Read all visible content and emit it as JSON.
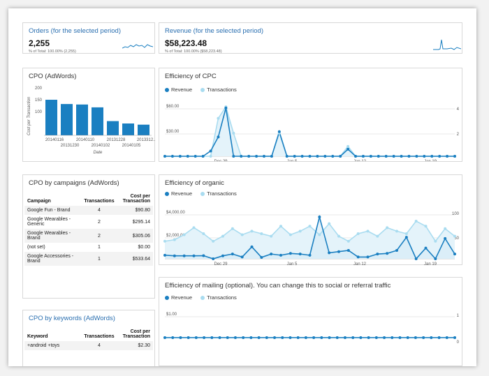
{
  "orders": {
    "title": "Orders (for the selected period)",
    "value": "2,255",
    "sub": "% of Total: 100.00% (2,255)"
  },
  "revenue": {
    "title": "Revenue (for the selected period)",
    "value": "$58,223.48",
    "sub": "% of Total: 100.00% ($58,223.48)"
  },
  "cpo": {
    "title": "CPO (AdWords)"
  },
  "cpc": {
    "title": "Efficiency of CPC",
    "legend": [
      "Revenue",
      "Transactions"
    ]
  },
  "organic": {
    "title": "Efficiency of organic",
    "legend": [
      "Revenue",
      "Transactions"
    ]
  },
  "mailing": {
    "title": "Efficiency of mailing (optional). You can change this to social or referral traffic",
    "legend": [
      "Revenue",
      "Transactions"
    ]
  },
  "campaigns": {
    "title": "CPO by campaigns (AdWords)",
    "headers": [
      "Campaign",
      "Transactions",
      "Cost per Transaction"
    ],
    "rows": [
      [
        "Google Fun - Brand",
        "4",
        "$90.80"
      ],
      [
        "Google Wearables - Generic",
        "2",
        "$295.14"
      ],
      [
        "Google Wearables - Brand",
        "2",
        "$305.06"
      ],
      [
        "(not set)",
        "1",
        "$0.00"
      ],
      [
        "Google Accessories - Brand",
        "1",
        "$533.64"
      ]
    ]
  },
  "keywords": {
    "title": "CPO by keywords (AdWords)",
    "headers": [
      "Keyword",
      "Transactions",
      "Cost per Transaction"
    ],
    "rows": [
      [
        "+android +toys",
        "4",
        "$2.30"
      ]
    ]
  },
  "colors": {
    "revenue": "#1a7fc1",
    "transactions": "#a9dcf0",
    "accent": "#2a6fb0"
  },
  "chart_data": [
    {
      "type": "bar",
      "title": "CPO (AdWords)",
      "ylabel": "Cost per Transaction",
      "xlabel": "Date",
      "ylim": [
        0,
        200
      ],
      "yticks": [
        "200",
        "150",
        "100"
      ],
      "categories": [
        "20140116",
        "20131230",
        "20140110",
        "20140102",
        "20131228",
        "20140105",
        "2013312..."
      ],
      "values": [
        150,
        132,
        130,
        118,
        60,
        50,
        45
      ]
    },
    {
      "type": "line",
      "title": "Efficiency of CPC",
      "y_left_ticks": [
        "$60.00",
        "$30.00"
      ],
      "y_right_ticks": [
        "4",
        "2"
      ],
      "x_ticks": [
        "Dec 29",
        "Jan 5",
        "Jan 12",
        "Jan 19"
      ],
      "series": [
        {
          "name": "Revenue",
          "values": [
            0,
            0,
            0,
            0,
            0,
            0,
            6,
            22,
            55,
            0,
            0,
            0,
            0,
            0,
            0,
            28,
            0,
            0,
            0,
            0,
            0,
            0,
            0,
            0,
            8,
            0,
            0,
            0,
            0,
            0,
            0,
            0,
            0,
            0,
            0,
            0,
            0,
            0,
            0
          ]
        },
        {
          "name": "Transactions",
          "values": [
            0,
            0,
            0,
            0,
            0,
            0,
            0,
            2.3,
            3,
            1.4,
            0,
            0,
            0,
            0,
            0,
            1.4,
            0,
            0,
            0,
            0,
            0,
            0,
            0,
            0,
            0.6,
            0,
            0,
            0,
            0,
            0,
            0,
            0,
            0,
            0,
            0,
            0,
            0,
            0,
            0
          ]
        }
      ]
    },
    {
      "type": "area",
      "title": "Efficiency of organic",
      "y_left_ticks": [
        "$4,000.00",
        "$2,000.00"
      ],
      "y_right_ticks": [
        "100",
        "50"
      ],
      "x_ticks": [
        "Dec 29",
        "Jan 5",
        "Jan 12",
        "Jan 19"
      ],
      "series": [
        {
          "name": "Revenue",
          "values": [
            300,
            250,
            250,
            250,
            260,
            0,
            250,
            400,
            150,
            1000,
            120,
            400,
            300,
            450,
            400,
            300,
            3500,
            500,
            600,
            700,
            150,
            150,
            400,
            450,
            700,
            1800,
            0,
            900,
            0,
            1700,
            400
          ]
        },
        {
          "name": "Transactions",
          "values": [
            35,
            38,
            48,
            62,
            50,
            35,
            45,
            60,
            48,
            55,
            50,
            45,
            65,
            48,
            55,
            65,
            48,
            70,
            45,
            35,
            50,
            55,
            45,
            62,
            55,
            50,
            75,
            65,
            35,
            60,
            45
          ]
        }
      ]
    },
    {
      "type": "line",
      "title": "Efficiency of mailing (optional). You can change this to social or referral traffic",
      "y_left_ticks": [
        "$1.00"
      ],
      "y_right_ticks": [
        "1",
        "0"
      ],
      "series": [
        {
          "name": "Revenue",
          "values": [
            0,
            0,
            0,
            0,
            0,
            0,
            0,
            0,
            0,
            0,
            0,
            0,
            0,
            0,
            0,
            0,
            0,
            0,
            0,
            0,
            0,
            0,
            0,
            0,
            0,
            0,
            0,
            0,
            0,
            0,
            0,
            0,
            0,
            0,
            0,
            0,
            0,
            0
          ]
        },
        {
          "name": "Transactions",
          "values": [
            0,
            0,
            0,
            0,
            0,
            0,
            0,
            0,
            0,
            0,
            0,
            0,
            0,
            0,
            0,
            0,
            0,
            0,
            0,
            0,
            0,
            0,
            0,
            0,
            0,
            0,
            0,
            0,
            0,
            0,
            0,
            0,
            0,
            0,
            0,
            0,
            0,
            0
          ]
        }
      ]
    }
  ]
}
